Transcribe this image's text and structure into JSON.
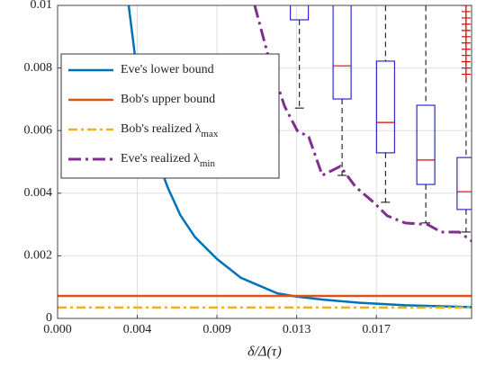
{
  "chart_data": {
    "type": "line",
    "xlabel": "δ/Δ(τ)",
    "xlim": [
      0,
      0.0226
    ],
    "ylim": [
      0,
      0.01
    ],
    "xticks": [
      {
        "value": 0,
        "label": "0.000"
      },
      {
        "value": 0.00435,
        "label": "0.004"
      },
      {
        "value": 0.0087,
        "label": "0.009"
      },
      {
        "value": 0.01305,
        "label": "0.013"
      },
      {
        "value": 0.0174,
        "label": "0.017"
      }
    ],
    "yticks": [
      0,
      0.002,
      0.004,
      0.006,
      0.008,
      0.01
    ],
    "grid": true,
    "legend": "upper left",
    "series": [
      {
        "name": "Eve's lower bound",
        "color": "#0072bd",
        "style": "solid",
        "x": [
          0.00388,
          0.0042,
          0.0045,
          0.005,
          0.0055,
          0.006,
          0.0067,
          0.0075,
          0.0087,
          0.01,
          0.012,
          0.013,
          0.0145,
          0.0165,
          0.019,
          0.0226
        ],
        "values": [
          0.01,
          0.0085,
          0.0074,
          0.006,
          0.005,
          0.0042,
          0.0033,
          0.0026,
          0.0019,
          0.0013,
          0.0008,
          0.0007,
          0.0006,
          0.0005,
          0.00042,
          0.00036
        ]
      },
      {
        "name": "Bob's upper bound",
        "color": "#d95319",
        "style": "solid",
        "x": [
          0,
          0.0226
        ],
        "values": [
          0.00072,
          0.00072
        ]
      },
      {
        "name": "Bob's realized λ",
        "name_subscript": "max",
        "color": "#edb120",
        "style": "dashdot",
        "x": [
          0,
          0.0226
        ],
        "values": [
          0.00035,
          0.00035
        ]
      },
      {
        "name": "Eve's realized λ",
        "name_subscript": "min",
        "color": "#7e2f8e",
        "style": "dashdot-thick",
        "x": [
          0.01076,
          0.0116,
          0.01239,
          0.01308,
          0.01371,
          0.01445,
          0.01543,
          0.01627,
          0.01725,
          0.01799,
          0.01897,
          0.0202,
          0.02094,
          0.02193,
          0.02261
        ],
        "values": [
          0.01,
          0.00816,
          0.00678,
          0.006,
          0.0058,
          0.00457,
          0.00486,
          0.0042,
          0.00371,
          0.00328,
          0.00305,
          0.003,
          0.00276,
          0.00276,
          0.00247
        ]
      }
    ],
    "boxes": {
      "box_color": "#0000cc",
      "median_color": "#e00000",
      "whisker_color": "#000000",
      "x": [
        0.0132,
        0.01553,
        0.0179,
        0.0201,
        0.0223
      ],
      "whisker_low": [
        0.00672,
        0.00457,
        0.00371,
        0.00305,
        0.00276
      ],
      "q1": [
        0.00954,
        0.00701,
        0.00529,
        0.00428,
        0.00348
      ],
      "median": [
        0.0104,
        0.00807,
        0.00626,
        0.00506,
        0.00405
      ],
      "q3": [
        0.0108,
        0.0102,
        0.00822,
        0.00681,
        0.00514
      ],
      "whisker_high": [
        0.012,
        0.012,
        0.012,
        0.012,
        0.012
      ],
      "outliers": {
        "x": [
          0.0223,
          0.0223,
          0.0223,
          0.0223,
          0.0223,
          0.0223,
          0.0223,
          0.0223,
          0.0223,
          0.0223,
          0.0223,
          0.0223
        ],
        "values": [
          0.01,
          0.0098,
          0.0096,
          0.0094,
          0.0092,
          0.009,
          0.0088,
          0.0086,
          0.0084,
          0.0082,
          0.008,
          0.0078
        ]
      }
    }
  }
}
